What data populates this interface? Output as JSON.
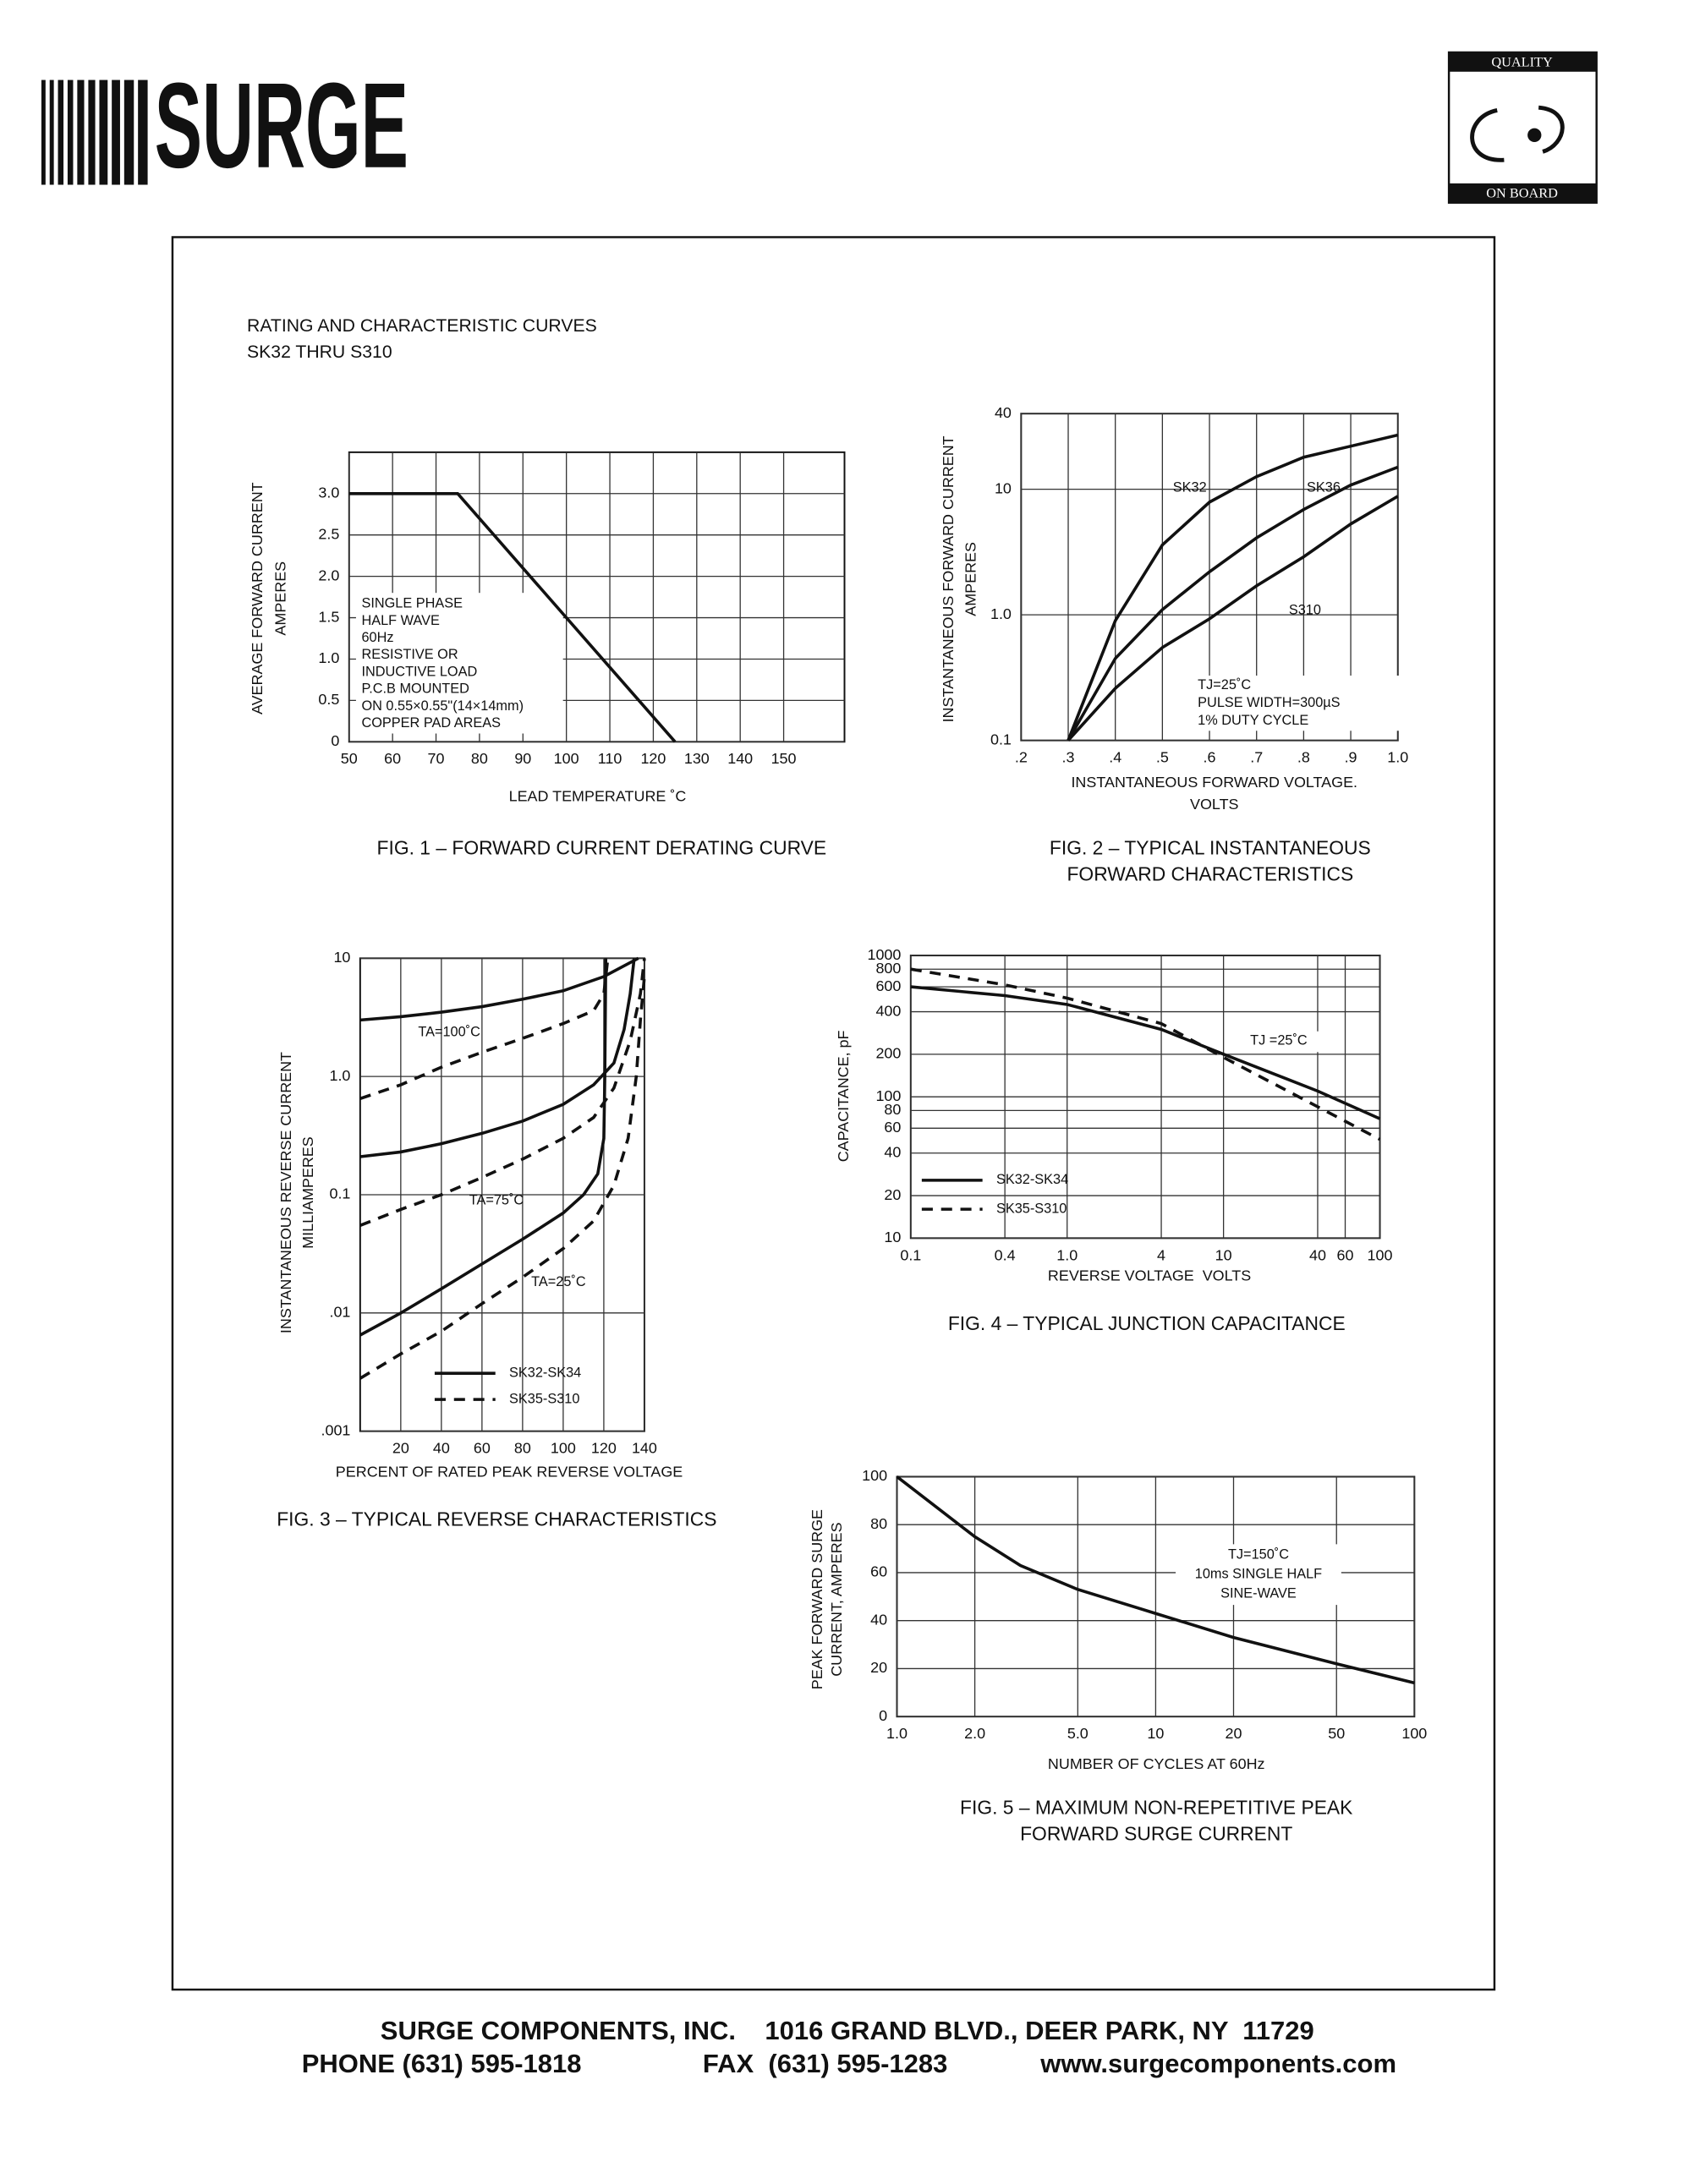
{
  "header": {
    "logo": "SURGE",
    "badge_top": "QUALITY",
    "badge_bottom": "ON BOARD",
    "title": "RATING AND CHARACTERISTIC CURVES",
    "subtitle": "SK32 THRU S310"
  },
  "chart_data": [
    {
      "type": "line",
      "caption": [
        "FIG. 1 – FORWARD CURRENT DERATING CURVE"
      ],
      "ylabel": [
        "AVERAGE FORWARD CURRENT",
        "AMPERES"
      ],
      "xlabel": [
        "LEAD TEMPERATURE ˚C"
      ],
      "xlim": [
        50,
        164
      ],
      "ylim": [
        0,
        3.5
      ],
      "grid": true,
      "xticks": [
        50,
        60,
        70,
        80,
        90,
        100,
        110,
        120,
        130,
        140,
        150
      ],
      "yticks": [
        0,
        0.5,
        {
          "value": 1.0,
          "label": "1.0"
        },
        1.5,
        {
          "value": 2.0,
          "label": "2.0"
        },
        2.5,
        {
          "value": 3.0,
          "label": "3.0"
        }
      ],
      "annotation": [
        "SINGLE PHASE",
        "HALF WAVE",
        "60Hz",
        "RESISTIVE OR",
        "INDUCTIVE LOAD",
        "P.C.B MOUNTED",
        "ON 0.55×0.55\"(14×14mm)",
        "COPPER PAD AREAS"
      ],
      "series": [
        {
          "color": "#111111",
          "dashed": false,
          "x": [
            50,
            75,
            125
          ],
          "values": [
            3.0,
            3.0,
            0
          ]
        }
      ]
    },
    {
      "type": "line",
      "caption": [
        "FIG. 2 – TYPICAL INSTANTANEOUS",
        "FORWARD CHARACTERISTICS"
      ],
      "ylabel": [
        "INSTANTANEOUS FORWARD CURRENT",
        "AMPERES"
      ],
      "xlabel": [
        "INSTANTANEOUS FORWARD VOLTAGE.",
        "VOLTS"
      ],
      "xlim": [
        0.2,
        1.0
      ],
      "ylim": [
        0.1,
        40
      ],
      "ylog": true,
      "grid": true,
      "xticks": [
        {
          "value": 0.2,
          "label": ".2"
        },
        {
          "value": 0.3,
          "label": ".3"
        },
        {
          "value": 0.4,
          "label": ".4"
        },
        {
          "value": 0.5,
          "label": ".5"
        },
        {
          "value": 0.6,
          "label": ".6"
        },
        {
          "value": 0.7,
          "label": ".7"
        },
        {
          "value": 0.8,
          "label": ".8"
        },
        {
          "value": 0.9,
          "label": ".9"
        },
        {
          "value": 1.0,
          "label": "1.0"
        }
      ],
      "yticks": [
        0.1,
        {
          "value": 1.0,
          "label": "1.0"
        },
        10,
        40
      ],
      "annotation": [
        "TJ=25˚C",
        "PULSE WIDTH=300µS",
        "1% DUTY CYCLE"
      ],
      "series": [
        {
          "name": "SK32",
          "color": "#111111",
          "dashed": false,
          "x": [
            0.3,
            0.4,
            0.5,
            0.6,
            0.7,
            0.8,
            0.9,
            1.0
          ],
          "values": [
            0.1,
            0.9,
            3.6,
            7.9,
            12.6,
            18,
            22,
            27
          ]
        },
        {
          "name": "SK36",
          "color": "#111111",
          "dashed": false,
          "x": [
            0.3,
            0.4,
            0.5,
            0.6,
            0.7,
            0.8,
            0.9,
            1.0
          ],
          "values": [
            0.1,
            0.45,
            1.1,
            2.2,
            4.1,
            6.9,
            10.8,
            15
          ]
        },
        {
          "name": "S310",
          "color": "#111111",
          "dashed": false,
          "x": [
            0.3,
            0.4,
            0.5,
            0.6,
            0.7,
            0.8,
            0.9,
            1.0
          ],
          "values": [
            0.1,
            0.26,
            0.55,
            0.93,
            1.7,
            2.9,
            5.3,
            8.8
          ]
        }
      ]
    },
    {
      "type": "line",
      "caption": [
        "FIG. 3 – TYPICAL REVERSE CHARACTERISTICS"
      ],
      "ylabel": [
        "INSTANTANEOUS REVERSE CURRENT",
        "MILLIAMPERES"
      ],
      "xlabel": [
        "PERCENT OF RATED PEAK REVERSE VOLTAGE"
      ],
      "xlim": [
        0,
        140
      ],
      "ylim": [
        0.001,
        10
      ],
      "ylog": true,
      "grid": true,
      "xticks": [
        20,
        40,
        60,
        80,
        100,
        120,
        140
      ],
      "yticks": [
        {
          "value": 0.001,
          "label": ".001"
        },
        {
          "value": 0.01,
          "label": ".01"
        },
        0.1,
        {
          "value": 1.0,
          "label": "1.0"
        },
        10
      ],
      "legend": [
        {
          "name": "SK32-SK34",
          "dashed": false
        },
        {
          "name": "SK35-S310",
          "dashed": true
        }
      ],
      "series": [
        {
          "name": "TA=100˚C",
          "color": "#111111",
          "dashed": false,
          "x": [
            0,
            20,
            40,
            60,
            80,
            100,
            120,
            137
          ],
          "values": [
            3.0,
            3.2,
            3.5,
            3.9,
            4.5,
            5.3,
            7,
            10
          ]
        },
        {
          "color": "#111111",
          "dashed": true,
          "x": [
            0,
            20,
            40,
            60,
            80,
            100,
            115,
            120,
            122
          ],
          "values": [
            0.65,
            0.85,
            1.2,
            1.6,
            2.1,
            2.8,
            3.6,
            5,
            10
          ]
        },
        {
          "name": "TA=75˚C",
          "color": "#111111",
          "dashed": false,
          "x": [
            0,
            20,
            40,
            60,
            80,
            100,
            115,
            125,
            130,
            133,
            135
          ],
          "values": [
            0.21,
            0.23,
            0.27,
            0.33,
            0.42,
            0.58,
            0.85,
            1.3,
            2.5,
            5,
            10
          ]
        },
        {
          "color": "#111111",
          "dashed": true,
          "x": [
            0,
            20,
            40,
            60,
            80,
            100,
            115,
            125,
            133,
            138,
            140
          ],
          "values": [
            0.055,
            0.075,
            0.1,
            0.14,
            0.2,
            0.3,
            0.45,
            0.8,
            2,
            5,
            10
          ]
        },
        {
          "name": "TA=25˚C",
          "color": "#111111",
          "dashed": false,
          "x": [
            0,
            20,
            40,
            60,
            80,
            100,
            110,
            117,
            120,
            120.5,
            121
          ],
          "values": [
            0.0065,
            0.01,
            0.016,
            0.026,
            0.042,
            0.07,
            0.1,
            0.15,
            0.3,
            1,
            10
          ]
        },
        {
          "color": "#111111",
          "dashed": true,
          "x": [
            0,
            20,
            40,
            60,
            80,
            100,
            115,
            125,
            132,
            136,
            138,
            140
          ],
          "values": [
            0.0028,
            0.0045,
            0.007,
            0.012,
            0.02,
            0.035,
            0.06,
            0.12,
            0.3,
            1,
            3,
            7
          ]
        }
      ]
    },
    {
      "type": "line",
      "caption": [
        "FIG. 4 – TYPICAL JUNCTION CAPACITANCE"
      ],
      "ylabel": [
        "CAPACITANCE, pF"
      ],
      "xlabel": [
        "REVERSE VOLTAGE  VOLTS"
      ],
      "xlim": [
        0.1,
        100
      ],
      "ylim": [
        10,
        1000
      ],
      "xlog": true,
      "ylog": true,
      "grid": true,
      "xticks": [
        0.1,
        0.4,
        {
          "value": 1.0,
          "label": "1.0"
        },
        4,
        10,
        40,
        60,
        100
      ],
      "yticks": [
        10,
        20,
        40,
        60,
        80,
        100,
        200,
        400,
        600,
        800,
        1000
      ],
      "annotation": [
        "TJ =25˚C"
      ],
      "series": [
        {
          "name": "SK32-SK34",
          "color": "#111111",
          "dashed": false,
          "x": [
            0.1,
            0.4,
            1,
            4,
            10,
            40,
            100
          ],
          "values": [
            600,
            520,
            450,
            300,
            200,
            110,
            70
          ]
        },
        {
          "name": "SK35-S310",
          "color": "#111111",
          "dashed": true,
          "x": [
            0.1,
            0.4,
            1,
            4,
            10,
            40,
            100
          ],
          "values": [
            800,
            620,
            500,
            330,
            190,
            85,
            50
          ]
        }
      ]
    },
    {
      "type": "line",
      "caption": [
        "FIG. 5 – MAXIMUM NON-REPETITIVE PEAK",
        "FORWARD SURGE CURRENT"
      ],
      "ylabel": [
        "PEAK FORWARD SURGE",
        "CURRENT, AMPERES"
      ],
      "xlabel": [
        "NUMBER OF CYCLES AT 60Hz"
      ],
      "xlim": [
        1,
        100
      ],
      "ylim": [
        0,
        100
      ],
      "xlog": true,
      "grid": true,
      "xticks": [
        {
          "value": 1.0,
          "label": "1.0"
        },
        {
          "value": 2.0,
          "label": "2.0"
        },
        {
          "value": 5.0,
          "label": "5.0"
        },
        10,
        20,
        50,
        100
      ],
      "yticks": [
        0,
        20,
        40,
        60,
        80,
        100
      ],
      "annotation": [
        "TJ=150˚C",
        "10ms SINGLE HALF",
        "SINE-WAVE"
      ],
      "series": [
        {
          "color": "#111111",
          "dashed": false,
          "x": [
            1,
            2,
            3,
            5,
            10,
            20,
            50,
            100
          ],
          "values": [
            100,
            75,
            63,
            53,
            43,
            33,
            22,
            14
          ]
        }
      ]
    }
  ],
  "footer": {
    "line1": "SURGE COMPONENTS, INC.    1016 GRAND BLVD., DEER PARK, NY  11729",
    "phone": "PHONE (631) 595-1818",
    "fax": "FAX  (631) 595-1283",
    "web": "www.surgecomponents.com"
  }
}
